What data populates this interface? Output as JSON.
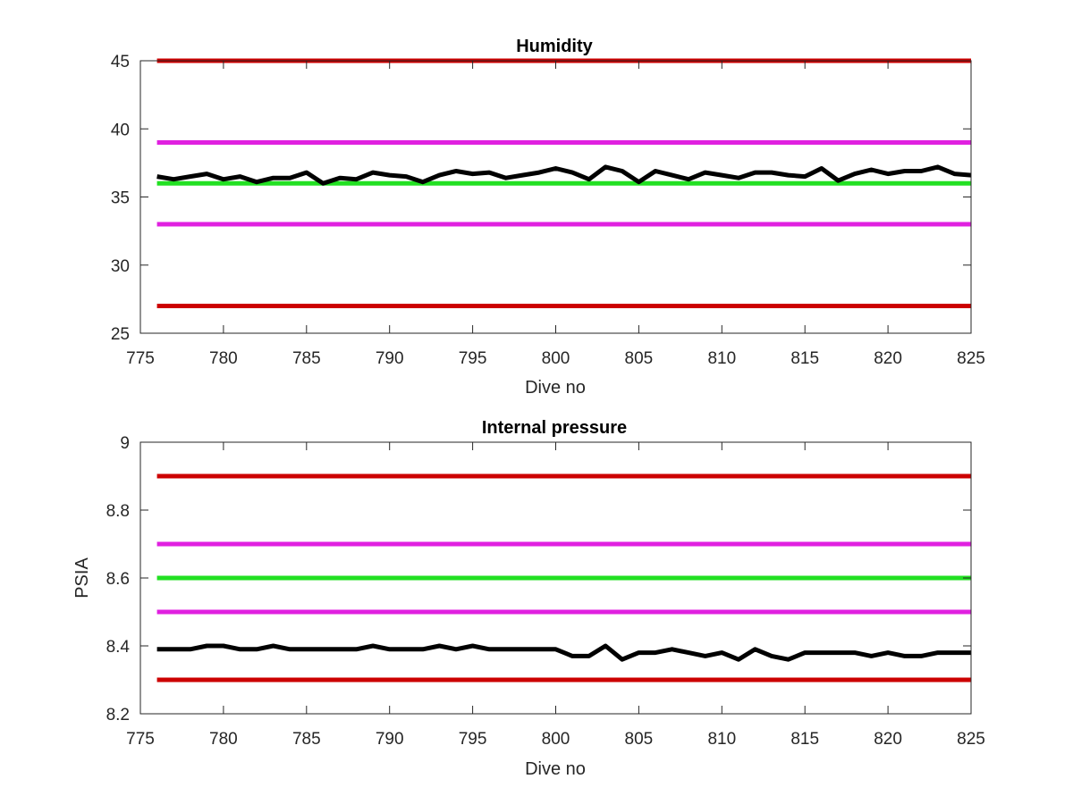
{
  "chart_data": [
    {
      "type": "line",
      "title": "Humidity",
      "xlabel": "Dive no",
      "ylabel": "",
      "xlim": [
        775,
        825
      ],
      "ylim": [
        25,
        45
      ],
      "xticks": [
        775,
        780,
        785,
        790,
        795,
        800,
        805,
        810,
        815,
        820,
        825
      ],
      "yticks": [
        25,
        30,
        35,
        40,
        45
      ],
      "grid": false,
      "reference_lines": [
        {
          "y": 45,
          "color": "#cc0000"
        },
        {
          "y": 39,
          "color": "#e020e0"
        },
        {
          "y": 36,
          "color": "#22e022"
        },
        {
          "y": 33,
          "color": "#e020e0"
        },
        {
          "y": 27,
          "color": "#cc0000"
        }
      ],
      "series": [
        {
          "color": "#000000",
          "x": [
            776,
            777,
            778,
            779,
            780,
            781,
            782,
            783,
            784,
            785,
            786,
            787,
            788,
            789,
            790,
            791,
            792,
            793,
            794,
            795,
            796,
            797,
            798,
            799,
            800,
            801,
            802,
            803,
            804,
            805,
            806,
            807,
            808,
            809,
            810,
            811,
            812,
            813,
            814,
            815,
            816,
            817,
            818,
            819,
            820,
            821,
            822,
            823,
            824,
            825
          ],
          "values": [
            36.5,
            36.3,
            36.5,
            36.7,
            36.3,
            36.5,
            36.1,
            36.4,
            36.4,
            36.8,
            36.0,
            36.4,
            36.3,
            36.8,
            36.6,
            36.5,
            36.1,
            36.6,
            36.9,
            36.7,
            36.8,
            36.4,
            36.6,
            36.8,
            37.1,
            36.8,
            36.3,
            37.2,
            36.9,
            36.1,
            36.9,
            36.6,
            36.3,
            36.8,
            36.6,
            36.4,
            36.8,
            36.8,
            36.6,
            36.5,
            37.1,
            36.2,
            36.7,
            37.0,
            36.7,
            36.9,
            36.9,
            37.2,
            36.7,
            36.6
          ]
        }
      ]
    },
    {
      "type": "line",
      "title": "Internal pressure",
      "xlabel": "Dive no",
      "ylabel": "PSIA",
      "xlim": [
        775,
        825
      ],
      "ylim": [
        8.2,
        9
      ],
      "xticks": [
        775,
        780,
        785,
        790,
        795,
        800,
        805,
        810,
        815,
        820,
        825
      ],
      "yticks": [
        8.2,
        8.4,
        8.6,
        8.8,
        9
      ],
      "grid": false,
      "reference_lines": [
        {
          "y": 8.9,
          "color": "#cc0000"
        },
        {
          "y": 8.7,
          "color": "#e020e0"
        },
        {
          "y": 8.6,
          "color": "#22e022"
        },
        {
          "y": 8.5,
          "color": "#e020e0"
        },
        {
          "y": 8.3,
          "color": "#cc0000"
        }
      ],
      "series": [
        {
          "color": "#000000",
          "x": [
            776,
            777,
            778,
            779,
            780,
            781,
            782,
            783,
            784,
            785,
            786,
            787,
            788,
            789,
            790,
            791,
            792,
            793,
            794,
            795,
            796,
            797,
            798,
            799,
            800,
            801,
            802,
            803,
            804,
            805,
            806,
            807,
            808,
            809,
            810,
            811,
            812,
            813,
            814,
            815,
            816,
            817,
            818,
            819,
            820,
            821,
            822,
            823,
            824,
            825
          ],
          "values": [
            8.39,
            8.39,
            8.39,
            8.4,
            8.4,
            8.39,
            8.39,
            8.4,
            8.39,
            8.39,
            8.39,
            8.39,
            8.39,
            8.4,
            8.39,
            8.39,
            8.39,
            8.4,
            8.39,
            8.4,
            8.39,
            8.39,
            8.39,
            8.39,
            8.39,
            8.37,
            8.37,
            8.4,
            8.36,
            8.38,
            8.38,
            8.39,
            8.38,
            8.37,
            8.38,
            8.36,
            8.39,
            8.37,
            8.36,
            8.38,
            8.38,
            8.38,
            8.38,
            8.37,
            8.38,
            8.37,
            8.37,
            8.38,
            8.38,
            8.38
          ]
        }
      ]
    }
  ]
}
